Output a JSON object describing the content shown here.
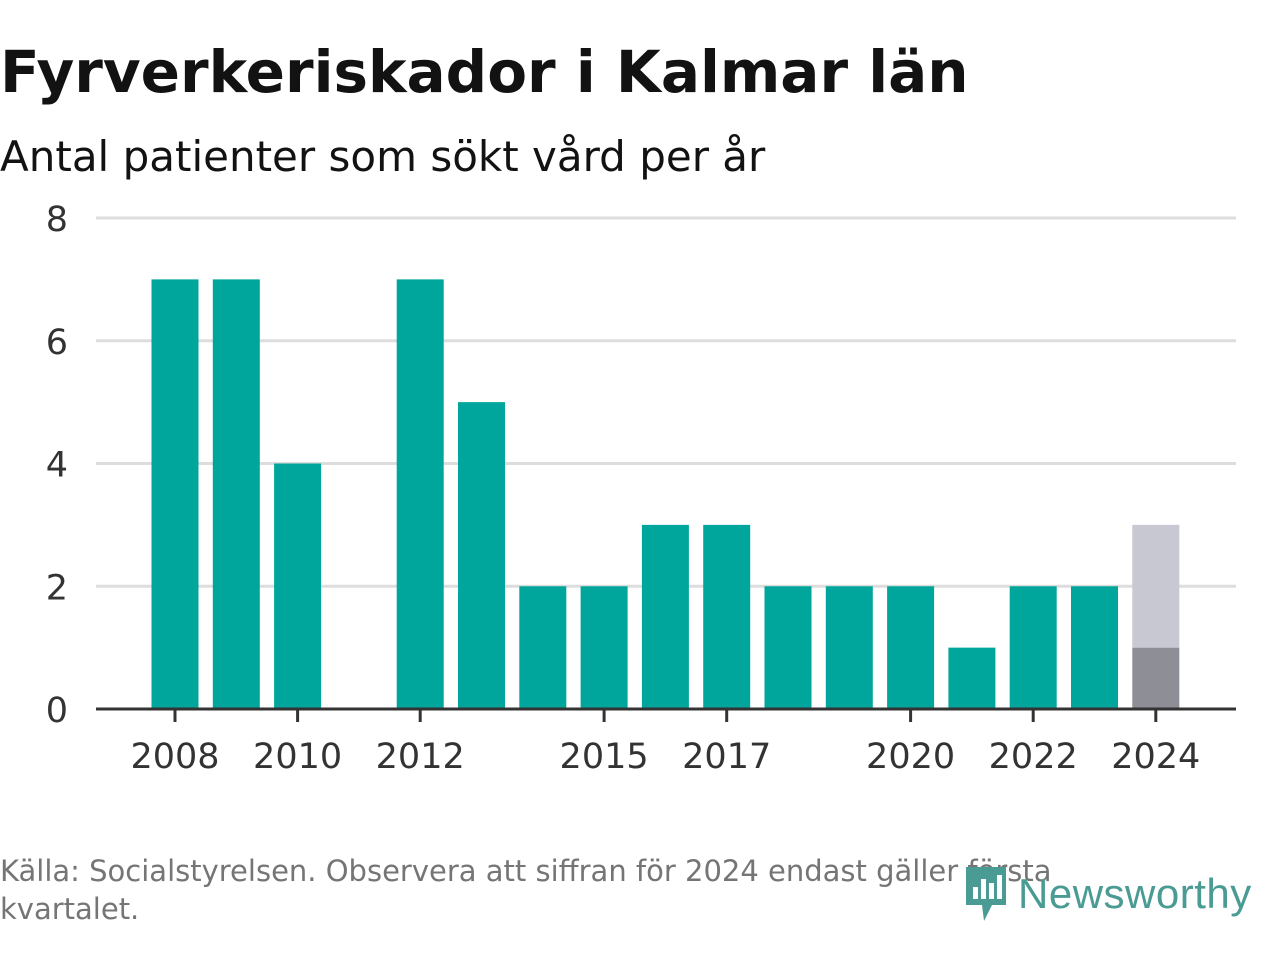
{
  "header": {
    "title": "Fyrverkeriskador i Kalmar län",
    "subtitle": "Antal patienter som sökt vård per år"
  },
  "footer": {
    "source_note": "Källa: Socialstyrelsen. Observera att siffran för 2024 endast gäller första kvartalet.",
    "brand": "Newsworthy"
  },
  "colors": {
    "bar": "#00a69c",
    "bar_partial_light": "#c8c8d2",
    "bar_partial_dark": "#8e8e96",
    "grid": "#dddddd",
    "axis": "#333333",
    "tick_text": "#333333",
    "brand": "#4a9b94"
  },
  "chart_data": {
    "type": "bar",
    "x": [
      2008,
      2009,
      2010,
      2011,
      2012,
      2013,
      2014,
      2015,
      2016,
      2017,
      2018,
      2019,
      2020,
      2021,
      2022,
      2023,
      2024
    ],
    "series": [
      {
        "values": [
          7,
          7,
          4,
          0,
          7,
          5,
          2,
          2,
          3,
          3,
          2,
          2,
          2,
          1,
          2,
          2,
          1
        ]
      },
      {
        "values": [
          0,
          0,
          0,
          0,
          0,
          0,
          0,
          0,
          0,
          0,
          0,
          0,
          0,
          0,
          0,
          0,
          2
        ]
      }
    ],
    "x_tick_labels": [
      "2008",
      "2010",
      "2012",
      "2015",
      "2017",
      "2020",
      "2022",
      "2024"
    ],
    "y_tick_labels": [
      "0",
      "2",
      "4",
      "6",
      "8"
    ],
    "ylim": [
      0,
      8
    ],
    "grid": true,
    "stacked": true
  }
}
